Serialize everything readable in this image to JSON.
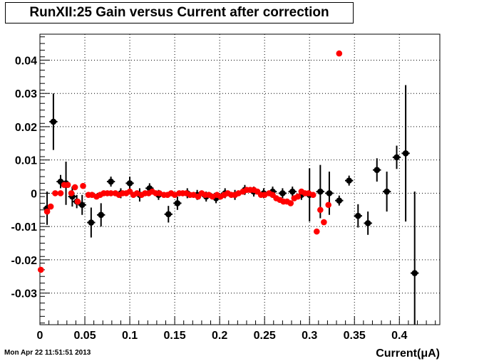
{
  "title": "RunXII:25 Gain versus Current after correction",
  "timestamp": "Mon Apr 22 11:51:51 2013",
  "chart_data": {
    "type": "scatter",
    "xlabel": "Current(μA)",
    "ylabel": "",
    "xlim": [
      0,
      0.445
    ],
    "ylim": [
      -0.0395,
      0.0478
    ],
    "grid": true,
    "x_ticks": [
      0,
      0.05,
      0.1,
      0.15,
      0.2,
      0.25,
      0.3,
      0.35,
      0.4
    ],
    "x_tick_labels": [
      "0",
      "0.05",
      "0.1",
      "0.15",
      "0.2",
      "0.25",
      "0.3",
      "0.35",
      "0.4"
    ],
    "y_ticks": [
      -0.03,
      -0.02,
      -0.01,
      0,
      0.01,
      0.02,
      0.03,
      0.04
    ],
    "y_tick_labels": [
      "-0.03",
      "-0.02",
      "-0.01",
      "0",
      "0.01",
      "0.02",
      "0.03",
      "0.04"
    ],
    "series": [
      {
        "color": "#000000",
        "points": [
          {
            "x": 0.008,
            "y": -0.0045,
            "yerr": 0.005
          },
          {
            "x": 0.015,
            "y": 0.0215,
            "yerr": 0.0085
          },
          {
            "x": 0.023,
            "y": 0.0035,
            "yerr": 0.002
          },
          {
            "x": 0.029,
            "y": 0.003,
            "yerr": 0.0065
          },
          {
            "x": 0.036,
            "y": -0.001,
            "yerr": 0.003
          },
          {
            "x": 0.041,
            "y": -0.0025,
            "yerr": 0.002
          },
          {
            "x": 0.047,
            "y": -0.0035,
            "yerr": 0.003
          },
          {
            "x": 0.057,
            "y": -0.0088,
            "yerr": 0.0045
          },
          {
            "x": 0.068,
            "y": -0.0065,
            "yerr": 0.0035
          },
          {
            "x": 0.079,
            "y": 0.0035,
            "yerr": 0.0015
          },
          {
            "x": 0.09,
            "y": 0.0,
            "yerr": 0.0015
          },
          {
            "x": 0.1,
            "y": 0.003,
            "yerr": 0.002
          },
          {
            "x": 0.111,
            "y": -0.0005,
            "yerr": 0.002
          },
          {
            "x": 0.122,
            "y": 0.0015,
            "yerr": 0.0015
          },
          {
            "x": 0.132,
            "y": -0.0005,
            "yerr": 0.0015
          },
          {
            "x": 0.143,
            "y": -0.0063,
            "yerr": 0.0025
          },
          {
            "x": 0.153,
            "y": -0.003,
            "yerr": 0.002
          },
          {
            "x": 0.164,
            "y": 0.0,
            "yerr": 0.0015
          },
          {
            "x": 0.175,
            "y": -0.0005,
            "yerr": 0.0015
          },
          {
            "x": 0.185,
            "y": -0.001,
            "yerr": 0.0015
          },
          {
            "x": 0.196,
            "y": -0.0015,
            "yerr": 0.0015
          },
          {
            "x": 0.206,
            "y": 0.0,
            "yerr": 0.0015
          },
          {
            "x": 0.217,
            "y": -0.0005,
            "yerr": 0.0015
          },
          {
            "x": 0.228,
            "y": 0.001,
            "yerr": 0.0015
          },
          {
            "x": 0.238,
            "y": 0.0005,
            "yerr": 0.0015
          },
          {
            "x": 0.249,
            "y": 0.0,
            "yerr": 0.0015
          },
          {
            "x": 0.259,
            "y": 0.0005,
            "yerr": 0.0015
          },
          {
            "x": 0.27,
            "y": 0.0,
            "yerr": 0.0015
          },
          {
            "x": 0.281,
            "y": 0.0005,
            "yerr": 0.0015
          },
          {
            "x": 0.291,
            "y": -0.0005,
            "yerr": 0.0015
          },
          {
            "x": 0.3,
            "y": -0.0005,
            "yerr": 0.008
          },
          {
            "x": 0.312,
            "y": 0.0005,
            "yerr": 0.008
          },
          {
            "x": 0.322,
            "y": 0.0,
            "yerr": 0.0065
          },
          {
            "x": 0.333,
            "y": -0.0022,
            "yerr": 0.0015
          },
          {
            "x": 0.344,
            "y": 0.0038,
            "yerr": 0.0015
          },
          {
            "x": 0.354,
            "y": -0.0068,
            "yerr": 0.0035
          },
          {
            "x": 0.365,
            "y": -0.009,
            "yerr": 0.0035
          },
          {
            "x": 0.375,
            "y": 0.007,
            "yerr": 0.0035
          },
          {
            "x": 0.386,
            "y": 0.0005,
            "yerr": 0.006
          },
          {
            "x": 0.397,
            "y": 0.0108,
            "yerr": 0.0035
          },
          {
            "x": 0.407,
            "y": 0.012,
            "yerr": 0.0205
          },
          {
            "x": 0.417,
            "y": -0.024,
            "yerr": 0.0245
          }
        ]
      },
      {
        "color": "#ff0000",
        "points": [
          {
            "x": 0.001,
            "y": -0.023
          },
          {
            "x": 0.008,
            "y": -0.0055
          },
          {
            "x": 0.012,
            "y": -0.004
          },
          {
            "x": 0.017,
            "y": 0.0
          },
          {
            "x": 0.023,
            "y": 0.0
          },
          {
            "x": 0.027,
            "y": 0.0025
          },
          {
            "x": 0.031,
            "y": 0.0025
          },
          {
            "x": 0.035,
            "y": 0.0
          },
          {
            "x": 0.039,
            "y": 0.0018
          },
          {
            "x": 0.042,
            "y": -0.0025
          },
          {
            "x": 0.048,
            "y": 0.0022
          },
          {
            "x": 0.054,
            "y": -0.0005
          },
          {
            "x": 0.058,
            "y": -0.0005
          },
          {
            "x": 0.063,
            "y": -0.001
          },
          {
            "x": 0.067,
            "y": -0.0005
          },
          {
            "x": 0.071,
            "y": 0.0
          },
          {
            "x": 0.075,
            "y": 0.0
          },
          {
            "x": 0.079,
            "y": 0.0
          },
          {
            "x": 0.084,
            "y": 0.0
          },
          {
            "x": 0.088,
            "y": -0.0005
          },
          {
            "x": 0.092,
            "y": 0.0
          },
          {
            "x": 0.096,
            "y": 0.0
          },
          {
            "x": 0.1,
            "y": 0.0005
          },
          {
            "x": 0.104,
            "y": -0.0005
          },
          {
            "x": 0.108,
            "y": 0.0
          },
          {
            "x": 0.113,
            "y": -0.0005
          },
          {
            "x": 0.117,
            "y": 0.0
          },
          {
            "x": 0.121,
            "y": 0.0
          },
          {
            "x": 0.125,
            "y": 0.0005
          },
          {
            "x": 0.129,
            "y": 0.0
          },
          {
            "x": 0.133,
            "y": 0.0
          },
          {
            "x": 0.138,
            "y": -0.0005
          },
          {
            "x": 0.142,
            "y": -0.0005
          },
          {
            "x": 0.146,
            "y": 0.0
          },
          {
            "x": 0.15,
            "y": -0.0005
          },
          {
            "x": 0.155,
            "y": 0.0
          },
          {
            "x": 0.159,
            "y": 0.0
          },
          {
            "x": 0.163,
            "y": 0.0
          },
          {
            "x": 0.167,
            "y": -0.0005
          },
          {
            "x": 0.171,
            "y": -0.0005
          },
          {
            "x": 0.176,
            "y": -0.001
          },
          {
            "x": 0.18,
            "y": 0.0
          },
          {
            "x": 0.184,
            "y": -0.0005
          },
          {
            "x": 0.188,
            "y": -0.0005
          },
          {
            "x": 0.192,
            "y": -0.001
          },
          {
            "x": 0.197,
            "y": -0.0005
          },
          {
            "x": 0.201,
            "y": -0.001
          },
          {
            "x": 0.205,
            "y": -0.0005
          },
          {
            "x": 0.209,
            "y": 0.0
          },
          {
            "x": 0.213,
            "y": -0.0005
          },
          {
            "x": 0.217,
            "y": -0.0005
          },
          {
            "x": 0.221,
            "y": 0.0
          },
          {
            "x": 0.226,
            "y": 0.0005
          },
          {
            "x": 0.23,
            "y": 0.001
          },
          {
            "x": 0.234,
            "y": 0.001
          },
          {
            "x": 0.238,
            "y": 0.001
          },
          {
            "x": 0.242,
            "y": 0.0005
          },
          {
            "x": 0.246,
            "y": -0.0005
          },
          {
            "x": 0.25,
            "y": -0.0005
          },
          {
            "x": 0.255,
            "y": 0.0
          },
          {
            "x": 0.259,
            "y": -0.0005
          },
          {
            "x": 0.263,
            "y": -0.0015
          },
          {
            "x": 0.267,
            "y": -0.002
          },
          {
            "x": 0.271,
            "y": -0.0025
          },
          {
            "x": 0.275,
            "y": -0.0025
          },
          {
            "x": 0.279,
            "y": -0.003
          },
          {
            "x": 0.283,
            "y": -0.0015
          },
          {
            "x": 0.287,
            "y": -0.001
          },
          {
            "x": 0.291,
            "y": 0.0005
          },
          {
            "x": 0.295,
            "y": 0.0
          },
          {
            "x": 0.299,
            "y": 0.0
          },
          {
            "x": 0.304,
            "y": -0.0005
          },
          {
            "x": 0.308,
            "y": -0.0115
          },
          {
            "x": 0.312,
            "y": -0.005
          },
          {
            "x": 0.316,
            "y": -0.0087
          },
          {
            "x": 0.321,
            "y": -0.0035
          },
          {
            "x": 0.333,
            "y": 0.042
          }
        ]
      }
    ]
  }
}
